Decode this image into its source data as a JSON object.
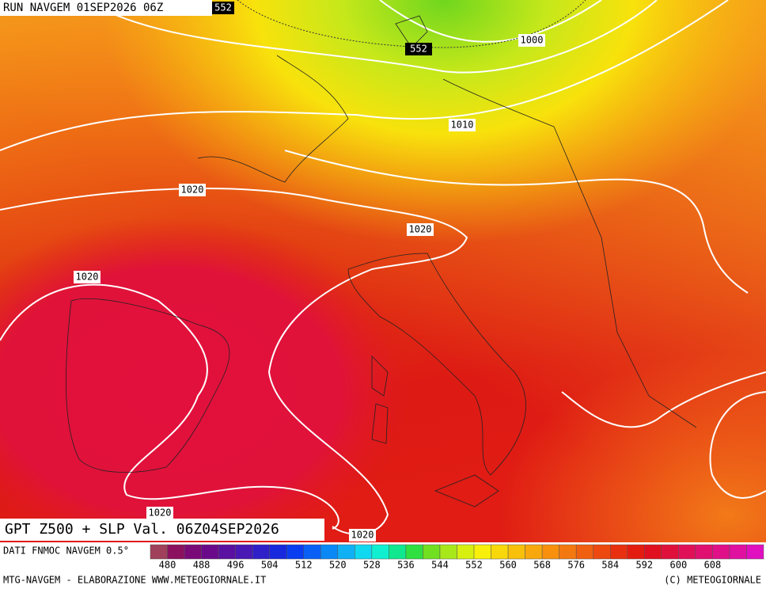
{
  "header": {
    "run": "RUN NAVGEM 01SEP2026 06Z",
    "badge": "552"
  },
  "contour_labels": [
    "1000",
    "552",
    "1010",
    "1020",
    "1020",
    "1020",
    "1020",
    "1020"
  ],
  "footer": {
    "title": "GPT Z500 + SLP Val. 06Z04SEP2026",
    "source": "DATI FNMOC NAVGEM 0.5°",
    "credit_left": "MTG-NAVGEM - ELABORAZIONE WWW.METEOGIORNALE.IT",
    "credit_right": "(C) METEOGIORNALE"
  },
  "legend": {
    "labels": [
      "480",
      "488",
      "496",
      "504",
      "512",
      "520",
      "528",
      "536",
      "544",
      "552",
      "560",
      "568",
      "576",
      "584",
      "592",
      "600",
      "608"
    ]
  }
}
